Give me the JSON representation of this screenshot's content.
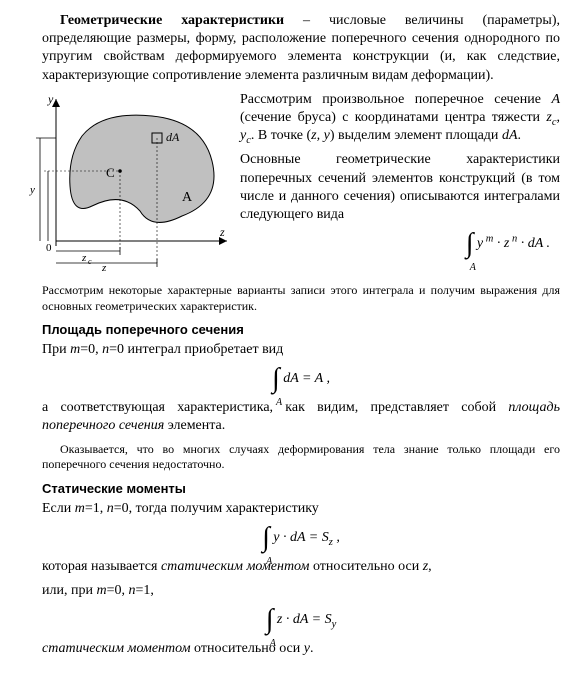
{
  "intro": {
    "term": "Геометрические характеристики",
    "def": " – числовые величины (параметры), определяющие размеры, форму, расположение поперечного сечения однородного по упругим свойствам деформируемого элемента конструкции (и, как следствие, характеризующие сопротивление элемента различным видам деформации)."
  },
  "figure": {
    "y": "y",
    "z": "z",
    "O": "0",
    "C": "C",
    "A": "A",
    "dA": "dA",
    "zc": "zc",
    "z_dim": "z",
    "y_dim": "y",
    "yc": "yc",
    "fill": "#c0c0c0",
    "stroke": "#000000"
  },
  "section1": {
    "p1a": "Рассмотрим произвольное поперечное сечение ",
    "p1b": "А",
    "p1c": " (сечение бруса) с координатами центра тяжести ",
    "p1d": "z",
    "p1e": ", ",
    "p1f": "y",
    "p1g": ". В точке (",
    "p1h": "z, y",
    "p1i": ") выделим элемент площади ",
    "p1j": "dA",
    "p1k": ".",
    "p2": "Основные геометрические характеристики поперечных сечений элементов конструкций (в том числе и данного сечения) описываются интегралами следующего вида",
    "formula": {
      "int_sub": "A",
      "body": " y<sup> m</sup> · z<sup> n</sup> · dA ."
    }
  },
  "bridge": "Рассмотрим некоторые характерные варианты записи этого интеграла и получим выражения для основных геометрических характеристик.",
  "area": {
    "h": "Площадь поперечного сечения",
    "p1a": "При ",
    "p1b": "m",
    "p1c": "=0, ",
    "p1d": "n",
    "p1e": "=0 интеграл приобретает вид",
    "formula": {
      "int_sub": "A",
      "body": " dA = A ,"
    },
    "p2a": "а соответствующая характеристика, как видим, представляет собой ",
    "p2b": "площадь поперечного сечения",
    "p2c": " элемента.",
    "p3": "Оказывается, что во многих случаях деформирования тела знание только площади его поперечного сечения недостаточно."
  },
  "static": {
    "h": "Статические моменты",
    "p1a": "Если ",
    "p1b": "m",
    "p1c": "=1, ",
    "p1d": "n",
    "p1e": "=0, тогда получим характеристику",
    "formula1": {
      "int_sub": "A",
      "body": " y · dA = S<sub>z</sub> ,"
    },
    "p2a": "которая называется ",
    "p2b": "статическим моментом",
    "p2c": " относительно оси ",
    "p2d": "z",
    "p2e": ",",
    "p3a": "или, при ",
    "p3b": "m",
    "p3c": "=0, ",
    "p3d": "n",
    "p3e": "=1,",
    "formula2": {
      "int_sub": "A",
      "body": " z · dA = S<sub>y</sub> "
    },
    "p4a": "статическим моментом",
    "p4b": " относительно оси ",
    "p4c": "y",
    "p4d": "."
  }
}
